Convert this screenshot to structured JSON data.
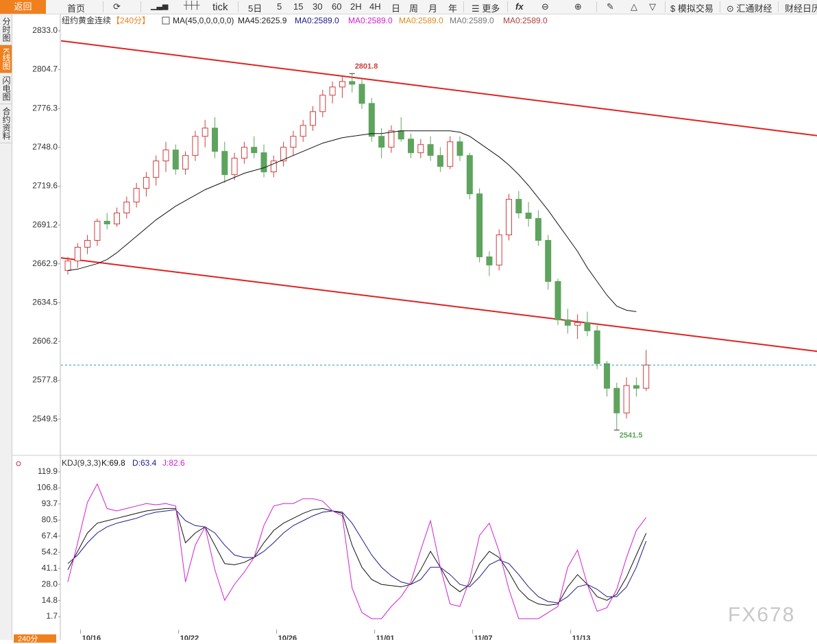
{
  "toolbar": {
    "items": [
      "返回",
      "首页",
      "tick",
      "5日",
      "5",
      "15",
      "30",
      "60",
      "2H",
      "4H",
      "日",
      "周",
      "月",
      "年",
      "更多",
      "模拟交易",
      "汇通财经",
      "财经日历"
    ]
  },
  "sidebar": {
    "tabs": [
      "分时图",
      "K线图",
      "闪电图",
      "合约资料"
    ]
  },
  "period_tab": "240分",
  "watermark": "FX678",
  "chart_data": [
    {
      "type": "candlestick",
      "title": "纽约黄金连续",
      "subtitle": "【240分】",
      "legend": [
        "MA(45,0,0,0,0,0)",
        "MA45:2625.9",
        "MA0:2589.0",
        "MA0:2589.0",
        "MA0:2589.0",
        "MA0:2589.0",
        "MA0:2589.0"
      ],
      "legend_colors": [
        "#222222",
        "#222222",
        "#1a1a8c",
        "#d020d0",
        "#e08a1e",
        "#777777",
        "#b04040"
      ],
      "categories": [
        null,
        null,
        "10/16",
        null,
        null,
        null,
        null,
        null,
        null,
        null,
        null,
        null,
        "10/22",
        null,
        null,
        null,
        null,
        null,
        null,
        null,
        null,
        null,
        "10/26",
        null,
        null,
        null,
        null,
        null,
        null,
        null,
        null,
        null,
        "11/01",
        null,
        null,
        null,
        null,
        null,
        null,
        null,
        null,
        null,
        "11/07",
        null,
        null,
        null,
        null,
        null,
        null,
        null,
        null,
        null,
        "11/13",
        null,
        null,
        null,
        null,
        null,
        null,
        null
      ],
      "open": [
        2658,
        2665,
        2675,
        2680,
        2694,
        2692,
        2700,
        2708,
        2718,
        2726,
        2738,
        2746,
        2732,
        2742,
        2756,
        2762,
        2745,
        2728,
        2740,
        2748,
        2744,
        2730,
        2738,
        2748,
        2756,
        2764,
        2774,
        2786,
        2792,
        2796,
        2794,
        2780,
        2756,
        2748,
        2760,
        2754,
        2744,
        2750,
        2742,
        2734,
        2752,
        2742,
        2714,
        2668,
        2662,
        2684,
        2710,
        2700,
        2696,
        2680,
        2650,
        2622,
        2618,
        2620,
        2614,
        2590,
        2572,
        2554,
        2574,
        2572
      ],
      "high": [
        2668,
        2678,
        2684,
        2696,
        2700,
        2704,
        2712,
        2722,
        2730,
        2742,
        2752,
        2750,
        2745,
        2760,
        2768,
        2770,
        2752,
        2744,
        2752,
        2756,
        2750,
        2742,
        2752,
        2760,
        2768,
        2778,
        2790,
        2796,
        2800,
        2801.8,
        2798,
        2784,
        2762,
        2764,
        2770,
        2758,
        2754,
        2756,
        2748,
        2756,
        2756,
        2744,
        2718,
        2672,
        2688,
        2714,
        2716,
        2708,
        2702,
        2684,
        2652,
        2630,
        2626,
        2628,
        2618,
        2592,
        2576,
        2580,
        2580,
        2600
      ],
      "low": [
        2655,
        2660,
        2670,
        2676,
        2688,
        2690,
        2696,
        2704,
        2712,
        2720,
        2730,
        2728,
        2728,
        2738,
        2748,
        2740,
        2722,
        2724,
        2736,
        2740,
        2726,
        2726,
        2734,
        2742,
        2752,
        2760,
        2770,
        2780,
        2784,
        2788,
        2776,
        2752,
        2740,
        2744,
        2752,
        2740,
        2740,
        2738,
        2730,
        2732,
        2738,
        2710,
        2664,
        2654,
        2658,
        2680,
        2696,
        2690,
        2676,
        2644,
        2618,
        2612,
        2608,
        2610,
        2586,
        2566,
        2541.5,
        2550,
        2566,
        2570
      ],
      "close": [
        2665,
        2675,
        2680,
        2694,
        2692,
        2700,
        2708,
        2718,
        2726,
        2738,
        2746,
        2732,
        2742,
        2756,
        2762,
        2745,
        2728,
        2740,
        2748,
        2744,
        2730,
        2738,
        2748,
        2756,
        2764,
        2774,
        2786,
        2792,
        2796,
        2794,
        2780,
        2756,
        2748,
        2760,
        2754,
        2744,
        2750,
        2742,
        2734,
        2752,
        2742,
        2714,
        2668,
        2662,
        2684,
        2710,
        2700,
        2696,
        2680,
        2650,
        2622,
        2618,
        2620,
        2614,
        2590,
        2572,
        2554,
        2574,
        2572,
        2589
      ],
      "up_color": "#d03c3c",
      "down_color": "#5ea35e",
      "series": [
        {
          "name": "MA45:2625.9",
          "color": "#111111",
          "values": [
            2658,
            2659,
            2661,
            2663,
            2666,
            2671,
            2677,
            2683,
            2689,
            2695,
            2700,
            2705,
            2709,
            2713,
            2717,
            2720,
            2723,
            2726,
            2729,
            2731,
            2733,
            2736,
            2739,
            2742,
            2745,
            2748,
            2751,
            2753,
            2755,
            2756,
            2757,
            2758,
            2758,
            2759,
            2760,
            2760,
            2760,
            2760,
            2760,
            2760,
            2759,
            2756,
            2751,
            2746,
            2741,
            2735,
            2728,
            2720,
            2711,
            2702,
            2692,
            2682,
            2672,
            2660,
            2650,
            2640,
            2632,
            2629,
            2628,
            null
          ]
        }
      ],
      "trendlines": [
        {
          "color": "#e02020",
          "x": [
            -1,
            77
          ],
          "y": [
            2826,
            2756
          ]
        },
        {
          "color": "#e02020",
          "x": [
            -1,
            77
          ],
          "y": [
            2667.5,
            2598.5
          ]
        }
      ],
      "ylim": [
        2524,
        2843
      ],
      "yticks": [
        {
          "value": 2833,
          "label": "2833.0"
        },
        2804.7,
        2776.3,
        {
          "value": 2748,
          "label": "2748.0"
        },
        2719.6,
        2691.2,
        2662.9,
        2634.5,
        2606.2,
        2577.8,
        2549.5
      ]
    },
    {
      "type": "line",
      "title": "KDJ(9,3,3)",
      "series": [
        {
          "name": "K:69.8",
          "color": "#111111",
          "values": [
            40,
            55,
            70,
            78,
            80,
            82,
            84,
            86,
            88,
            89,
            90,
            90,
            62,
            70,
            75,
            60,
            45,
            44,
            46,
            50,
            62,
            72,
            78,
            82,
            86,
            89,
            90,
            88,
            86,
            60,
            42,
            32,
            28,
            27,
            26,
            28,
            40,
            55,
            42,
            28,
            22,
            28,
            45,
            55,
            50,
            38,
            24,
            16,
            12,
            11,
            12,
            26,
            36,
            28,
            18,
            15,
            20,
            34,
            52,
            69.8
          ]
        },
        {
          "name": "D:63.4",
          "color": "#1a1a8c",
          "values": [
            45,
            52,
            62,
            70,
            75,
            78,
            80,
            82,
            85,
            87,
            88,
            89,
            80,
            76,
            75,
            70,
            60,
            52,
            50,
            50,
            55,
            62,
            70,
            76,
            80,
            84,
            87,
            88,
            87,
            78,
            65,
            52,
            42,
            35,
            30,
            28,
            32,
            42,
            42,
            36,
            28,
            26,
            34,
            44,
            48,
            45,
            36,
            26,
            18,
            14,
            13,
            18,
            26,
            28,
            24,
            18,
            18,
            26,
            42,
            63.4
          ]
        },
        {
          "name": "J:82.6",
          "color": "#d020d0",
          "values": [
            30,
            62,
            95,
            110,
            90,
            88,
            90,
            92,
            94,
            93,
            94,
            92,
            30,
            60,
            75,
            40,
            15,
            28,
            38,
            50,
            76,
            92,
            94,
            94,
            98,
            98,
            96,
            88,
            84,
            25,
            5,
            0,
            0,
            10,
            18,
            30,
            56,
            80,
            42,
            12,
            10,
            32,
            68,
            78,
            55,
            24,
            0,
            0,
            0,
            5,
            10,
            42,
            56,
            28,
            6,
            9,
            24,
            50,
            72,
            82.6
          ]
        }
      ],
      "ylim": [
        -8.9,
        131.1
      ],
      "yticks": [
        119.9,
        106.8,
        93.7,
        80.5,
        67.4,
        54.2,
        41.1,
        {
          "value": 28,
          "label": "28.0"
        },
        14.8,
        1.7
      ]
    }
  ]
}
